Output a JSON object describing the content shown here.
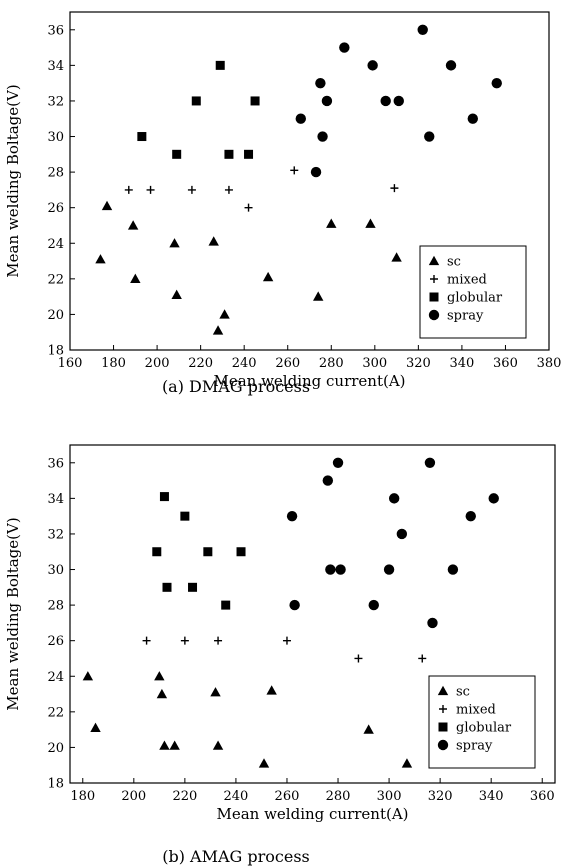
{
  "legend_labels": {
    "sc": "sc",
    "mixed": "mixed",
    "globular": "globular",
    "spray": "spray"
  },
  "chart_data": [
    {
      "type": "scatter",
      "title": "",
      "caption": "(a) DMAG process",
      "xlabel": "Mean welding current(A)",
      "ylabel": "Mean welding Boltage(V)",
      "xlim": [
        160,
        380
      ],
      "ylim": [
        18,
        37
      ],
      "xticks": [
        160,
        180,
        200,
        220,
        240,
        260,
        280,
        300,
        320,
        340,
        360,
        380
      ],
      "yticks": [
        18,
        20,
        22,
        24,
        26,
        28,
        30,
        32,
        34,
        36
      ],
      "grid": false,
      "legend_position": "bottom-right",
      "series": [
        {
          "name": "sc",
          "marker": "triangle",
          "points": [
            [
              174,
              23.1
            ],
            [
              177,
              26.1
            ],
            [
              189,
              25
            ],
            [
              190,
              22
            ],
            [
              208,
              24
            ],
            [
              209,
              21.1
            ],
            [
              226,
              24.1
            ],
            [
              228,
              19.1
            ],
            [
              231,
              20
            ],
            [
              251,
              22.1
            ],
            [
              274,
              21
            ],
            [
              280,
              25.1
            ],
            [
              298,
              25.1
            ],
            [
              310,
              23.2
            ]
          ]
        },
        {
          "name": "mixed",
          "marker": "plus",
          "points": [
            [
              187,
              27
            ],
            [
              197,
              27
            ],
            [
              216,
              27
            ],
            [
              233,
              27
            ],
            [
              242,
              26
            ],
            [
              263,
              28.1
            ],
            [
              309,
              27.1
            ]
          ]
        },
        {
          "name": "globular",
          "marker": "square",
          "points": [
            [
              193,
              30
            ],
            [
              209,
              29
            ],
            [
              218,
              32
            ],
            [
              229,
              34
            ],
            [
              233,
              29
            ],
            [
              242,
              29
            ],
            [
              245,
              32
            ]
          ]
        },
        {
          "name": "spray",
          "marker": "circle",
          "points": [
            [
              266,
              31
            ],
            [
              273,
              28
            ],
            [
              275,
              33
            ],
            [
              276,
              30
            ],
            [
              278,
              32
            ],
            [
              286,
              35
            ],
            [
              299,
              34
            ],
            [
              305,
              32
            ],
            [
              311,
              32
            ],
            [
              322,
              36
            ],
            [
              325,
              30
            ],
            [
              335,
              34
            ],
            [
              345,
              31
            ],
            [
              356,
              33
            ]
          ]
        }
      ]
    },
    {
      "type": "scatter",
      "title": "",
      "caption": "(b) AMAG process",
      "xlabel": "Mean welding current(A)",
      "ylabel": "Mean welding Boltage(V)",
      "xlim": [
        175,
        365
      ],
      "ylim": [
        18,
        37
      ],
      "xticks": [
        180,
        200,
        220,
        240,
        260,
        280,
        300,
        320,
        340,
        360
      ],
      "yticks": [
        18,
        20,
        22,
        24,
        26,
        28,
        30,
        32,
        34,
        36
      ],
      "grid": false,
      "legend_position": "bottom-right",
      "series": [
        {
          "name": "sc",
          "marker": "triangle",
          "points": [
            [
              182,
              24
            ],
            [
              185,
              21.1
            ],
            [
              210,
              24
            ],
            [
              211,
              23
            ],
            [
              212,
              20.1
            ],
            [
              216,
              20.1
            ],
            [
              232,
              23.1
            ],
            [
              233,
              20.1
            ],
            [
              251,
              19.1
            ],
            [
              254,
              23.2
            ],
            [
              292,
              21
            ],
            [
              307,
              19.1
            ]
          ]
        },
        {
          "name": "mixed",
          "marker": "plus",
          "points": [
            [
              205,
              26
            ],
            [
              220,
              26
            ],
            [
              233,
              26
            ],
            [
              260,
              26
            ],
            [
              288,
              25
            ],
            [
              313,
              25
            ]
          ]
        },
        {
          "name": "globular",
          "marker": "square",
          "points": [
            [
              209,
              31
            ],
            [
              212,
              34.1
            ],
            [
              213,
              29
            ],
            [
              220,
              33
            ],
            [
              223,
              29
            ],
            [
              229,
              31
            ],
            [
              236,
              28
            ],
            [
              242,
              31
            ]
          ]
        },
        {
          "name": "spray",
          "marker": "circle",
          "points": [
            [
              262,
              33
            ],
            [
              263,
              28
            ],
            [
              276,
              35
            ],
            [
              277,
              30
            ],
            [
              280,
              36
            ],
            [
              281,
              30
            ],
            [
              294,
              28
            ],
            [
              300,
              30
            ],
            [
              302,
              34
            ],
            [
              305,
              32
            ],
            [
              316,
              36
            ],
            [
              317,
              27
            ],
            [
              325,
              30
            ],
            [
              332,
              33
            ],
            [
              341,
              34
            ]
          ]
        }
      ]
    }
  ]
}
